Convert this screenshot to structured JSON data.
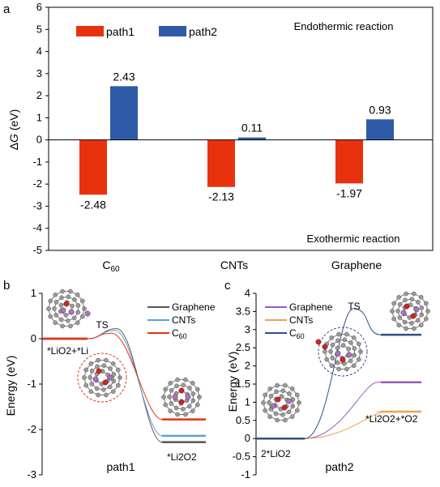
{
  "chart_data": [
    {
      "panel": "a",
      "type": "bar",
      "categories": [
        "C60",
        "CNTs",
        "Graphene"
      ],
      "category_base": [
        "C",
        "CNTs",
        "Graphene"
      ],
      "category_sub": [
        "60",
        "",
        ""
      ],
      "series": [
        {
          "name": "path1",
          "values": [
            -2.48,
            -2.13,
            -1.97
          ],
          "color": "#e8320f"
        },
        {
          "name": "path2",
          "values": [
            2.43,
            0.11,
            0.93
          ],
          "color": "#2e5ba8"
        }
      ],
      "data_labels": {
        "path1": [
          "-2.48",
          "-2.13",
          "-1.97"
        ],
        "path2": [
          "2.43",
          "0.11",
          "0.93"
        ]
      },
      "ylabel_symbol": "Δ",
      "ylabel_var": "G",
      "ylabel_unit": " (eV)",
      "ylim": [
        -5,
        6
      ],
      "yticks": [
        "6",
        "5",
        "4",
        "3",
        "2",
        "1",
        "0",
        "-1",
        "-2",
        "-3",
        "-4",
        "-5"
      ],
      "annotations": {
        "top": "Endothermic reaction",
        "bottom": "Exothermic reaction"
      },
      "legend_position": "top-left"
    },
    {
      "panel": "b",
      "type": "line",
      "xlabel": "path1",
      "ylabel": "Energy (eV)",
      "ylim": [
        -3,
        1
      ],
      "yticks": [
        "1",
        "0",
        "-1",
        "-2",
        "-3"
      ],
      "states": {
        "initial": "*LiO2+*Li",
        "ts": "TS",
        "final": "*Li2O2"
      },
      "series": [
        {
          "name": "Graphene",
          "values": [
            0,
            0.22,
            -2.28
          ],
          "color": "#555555"
        },
        {
          "name": "CNTs",
          "values": [
            0,
            0.18,
            -2.14
          ],
          "color": "#5aa0d8"
        },
        {
          "name": "C60",
          "values": [
            0,
            0.12,
            -1.78
          ],
          "color": "#e8320f"
        }
      ],
      "legend": [
        {
          "base": "Graphene",
          "sub": ""
        },
        {
          "base": "CNTs",
          "sub": ""
        },
        {
          "base": "C",
          "sub": "60"
        }
      ],
      "legend_position": "top-right"
    },
    {
      "panel": "c",
      "type": "line",
      "xlabel": "path2",
      "ylabel": "Energy (eV)",
      "ylim": [
        -1,
        4
      ],
      "yticks": [
        "4",
        "3.5",
        "3",
        "2.5",
        "2",
        "1.5",
        "1",
        "0.5",
        "0",
        "-0.5",
        "-1"
      ],
      "states": {
        "initial": "2*LiO2",
        "ts": "TS",
        "final": "*Li2O2+*O2"
      },
      "series": [
        {
          "name": "Graphene",
          "values": [
            0,
            1.55,
            1.55
          ],
          "color": "#9b59b6"
        },
        {
          "name": "CNTs",
          "values": [
            0,
            0.74,
            0.74
          ],
          "color": "#f0a050"
        },
        {
          "name": "C60",
          "values": [
            0,
            3.58,
            2.86
          ],
          "color": "#2e4f8a"
        }
      ],
      "legend": [
        {
          "base": "Graphene",
          "sub": ""
        },
        {
          "base": "CNTs",
          "sub": ""
        },
        {
          "base": "C",
          "sub": "60"
        }
      ],
      "legend_position": "top-left"
    }
  ],
  "panels": {
    "a": "a",
    "b": "b",
    "c": "c"
  }
}
